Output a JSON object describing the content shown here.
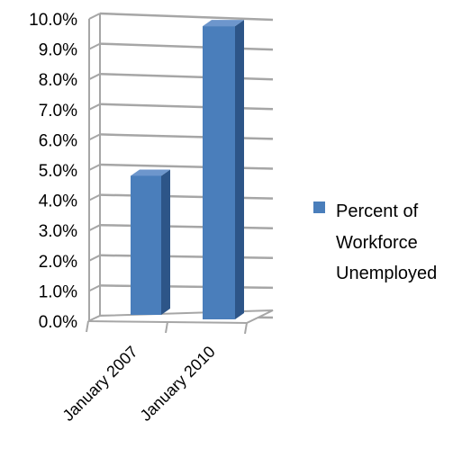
{
  "chart_data": {
    "type": "bar",
    "style": "3d-column",
    "categories": [
      "January 2007",
      "January 2010"
    ],
    "series": [
      {
        "name": "Percent of Workforce Unemployed",
        "values": [
          4.6,
          9.7
        ],
        "color": "#4a7ebb"
      }
    ],
    "y_tick_labels": [
      "0.0%",
      "1.0%",
      "2.0%",
      "3.0%",
      "4.0%",
      "5.0%",
      "6.0%",
      "7.0%",
      "8.0%",
      "9.0%",
      "10.0%"
    ],
    "ylim": [
      0,
      10
    ],
    "y_unit": "%",
    "grid": true,
    "legend_position": "right",
    "legend_lines": [
      "Percent of",
      "Workforce",
      "Unemployed"
    ]
  }
}
